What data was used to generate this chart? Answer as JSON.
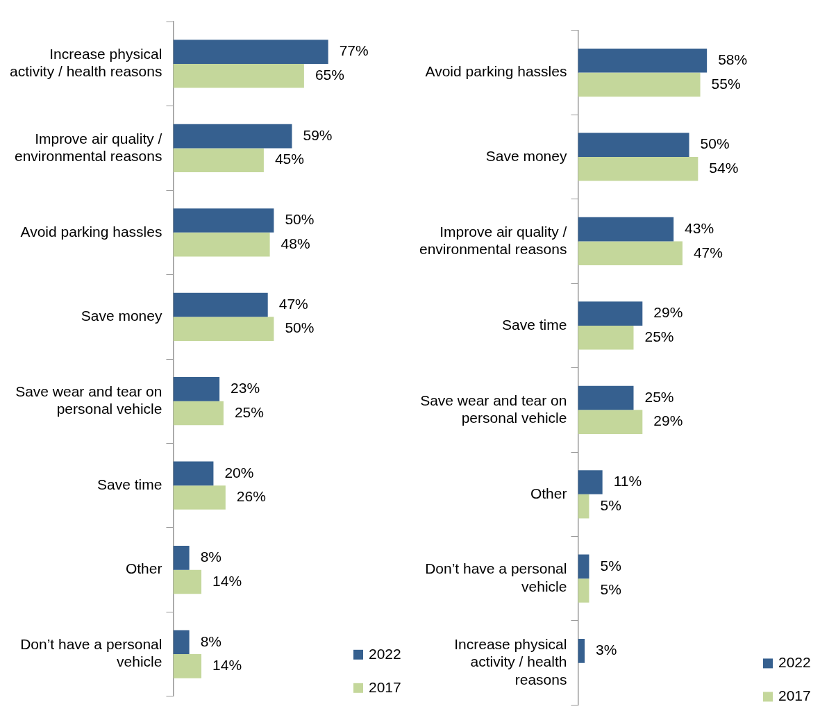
{
  "chart_data": [
    {
      "type": "bar",
      "orientation": "horizontal",
      "legend": "bottom right",
      "data_labels": true,
      "categories": [
        "Increase physical activity / health reasons",
        "Improve air quality / environmental reasons",
        "Avoid parking hassles",
        "Save money",
        "Save wear and tear on personal vehicle",
        "Save time",
        "Other",
        "Don’t have a personal vehicle"
      ],
      "series": [
        {
          "name": "2022",
          "color": "#36608f",
          "values": [
            77,
            59,
            50,
            47,
            23,
            20,
            8,
            8
          ],
          "value_labels": [
            "77%",
            "59%",
            "50%",
            "47%",
            "23%",
            "20%",
            "8%",
            "8%"
          ]
        },
        {
          "name": "2017",
          "color": "#c4d79b",
          "values": [
            65,
            45,
            48,
            50,
            25,
            26,
            14,
            14
          ],
          "value_labels": [
            "65%",
            "45%",
            "48%",
            "50%",
            "25%",
            "26%",
            "14%",
            "14%"
          ]
        }
      ]
    },
    {
      "type": "bar",
      "orientation": "horizontal",
      "legend": "bottom right",
      "data_labels": true,
      "categories": [
        "Avoid parking hassles",
        "Save money",
        "Improve air quality / environmental reasons",
        "Save time",
        "Save wear and tear on personal vehicle",
        "Other",
        "Don’t have a personal vehicle",
        "Increase physical activity / health reasons"
      ],
      "series": [
        {
          "name": "2022",
          "color": "#36608f",
          "values": [
            58,
            50,
            43,
            29,
            25,
            11,
            5,
            3
          ],
          "value_labels": [
            "58%",
            "50%",
            "43%",
            "29%",
            "25%",
            "11%",
            "5%",
            "3%"
          ]
        },
        {
          "name": "2017",
          "color": "#c4d79b",
          "values": [
            55,
            54,
            47,
            25,
            29,
            5,
            5,
            null
          ],
          "value_labels": [
            "55%",
            "54%",
            "47%",
            "25%",
            "29%",
            "5%",
            "5%",
            null
          ]
        }
      ]
    }
  ]
}
